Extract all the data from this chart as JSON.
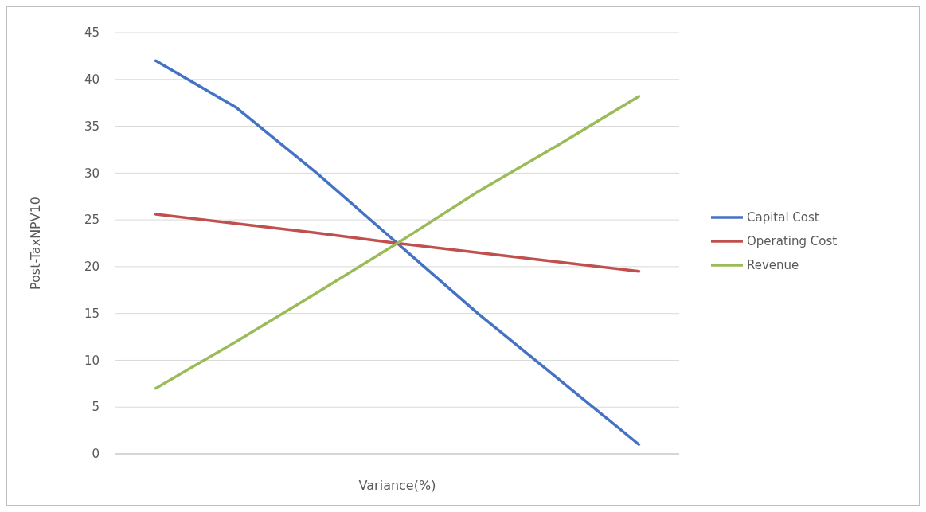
{
  "chart_data": {
    "type": "line",
    "xlabel": "Variance(%)",
    "ylabel": "Post-TaxNPV10",
    "categories": [
      null,
      null,
      null,
      null,
      null,
      null,
      null
    ],
    "series": [
      {
        "name": "Capital Cost",
        "color": "#4472c4",
        "values": [
          42,
          37,
          30,
          22.5,
          15,
          8,
          1
        ]
      },
      {
        "name": "Operating Cost",
        "color": "#c0504d",
        "values": [
          25.6,
          24.6,
          23.6,
          22.5,
          21.5,
          20.5,
          19.5
        ]
      },
      {
        "name": "Revenue",
        "color": "#9bbb59",
        "values": [
          7,
          12,
          17.2,
          22.5,
          28,
          33,
          38.2
        ]
      }
    ],
    "ylim": [
      0,
      45
    ],
    "yticks": [
      0,
      5,
      10,
      15,
      20,
      25,
      30,
      35,
      40,
      45
    ],
    "grid": "y",
    "legend": "right",
    "marker": "none",
    "line_style": "solid"
  }
}
